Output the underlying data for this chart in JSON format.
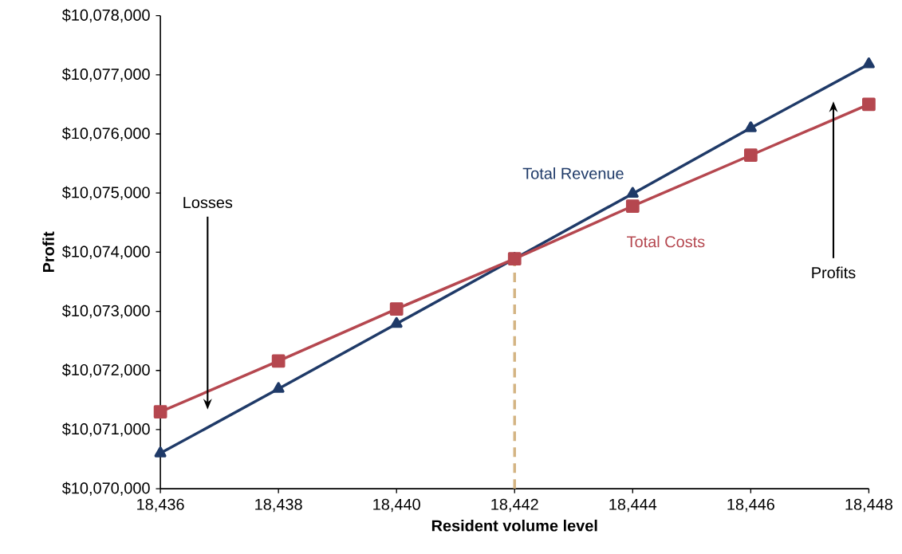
{
  "chart_data": {
    "type": "line",
    "xlabel": "Resident volume level",
    "ylabel": "Profit",
    "xlim": [
      18436,
      18448
    ],
    "ylim": [
      10070000,
      10078000
    ],
    "xticks": [
      {
        "value": 18436,
        "label": "18,436"
      },
      {
        "value": 18438,
        "label": "18,438"
      },
      {
        "value": 18440,
        "label": "18,440"
      },
      {
        "value": 18442,
        "label": "18,442"
      },
      {
        "value": 18444,
        "label": "18,444"
      },
      {
        "value": 18446,
        "label": "18,446"
      },
      {
        "value": 18448,
        "label": "18,448"
      }
    ],
    "yticks": [
      {
        "value": 10070000,
        "label": "$10,070,000"
      },
      {
        "value": 10071000,
        "label": "$10,071,000"
      },
      {
        "value": 10072000,
        "label": "$10,072,000"
      },
      {
        "value": 10073000,
        "label": "$10,073,000"
      },
      {
        "value": 10074000,
        "label": "$10,074,000"
      },
      {
        "value": 10075000,
        "label": "$10,075,000"
      },
      {
        "value": 10076000,
        "label": "$10,076,000"
      },
      {
        "value": 10077000,
        "label": "$10,077,000"
      },
      {
        "value": 10078000,
        "label": "$10,078,000"
      }
    ],
    "x": [
      18436,
      18438,
      18440,
      18442,
      18444,
      18446,
      18448
    ],
    "series": [
      {
        "name": "Total Revenue",
        "color": "#1f3a68",
        "marker": "triangle",
        "values": [
          10070600,
          10071690,
          10072790,
          10073890,
          10074990,
          10076100,
          10077180
        ]
      },
      {
        "name": "Total Costs",
        "color": "#b5474f",
        "marker": "square",
        "values": [
          10071300,
          10072160,
          10073040,
          10073890,
          10074780,
          10075640,
          10076500
        ]
      },
      {
        "color": "#d4b483",
        "marker": "none",
        "line_style": "dashed",
        "x": [
          18442,
          18442
        ],
        "values": [
          10070000,
          10073890
        ]
      }
    ],
    "annotations": [
      "Losses",
      "Profits"
    ],
    "grid": false
  }
}
